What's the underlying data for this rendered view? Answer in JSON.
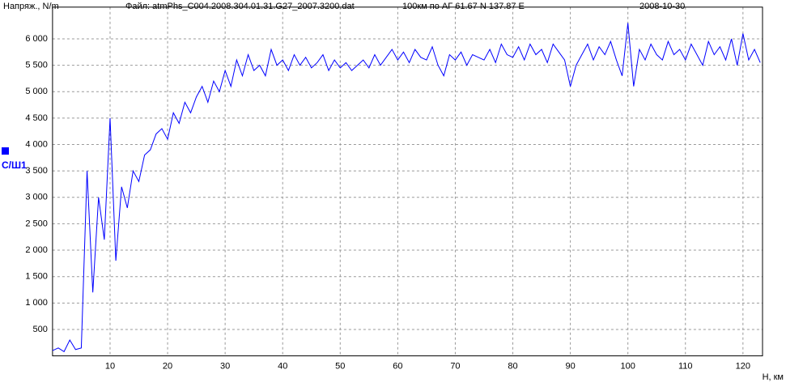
{
  "chart_data": {
    "type": "line",
    "title": "Файл: atmPhs_C004.2008.304.01.31.G27_2007.3200.dat",
    "y_label": "Напряж., N/m",
    "location": "100км по АГ 61.67 N  137.87 E",
    "date": "2008-10-30",
    "x_label": "Н, км",
    "grid": true,
    "xlim": [
      0,
      123.4
    ],
    "ylim": [
      0,
      6600
    ],
    "xticks": [
      10,
      20,
      30,
      40,
      50,
      60,
      70,
      80,
      90,
      100,
      110,
      120
    ],
    "yticks": [
      {
        "value": 500,
        "label": "500"
      },
      {
        "value": 1000,
        "label": "1 000"
      },
      {
        "value": 1500,
        "label": "1 500"
      },
      {
        "value": 2000,
        "label": "2 000"
      },
      {
        "value": 2500,
        "label": "2 500"
      },
      {
        "value": 3000,
        "label": "3 000"
      },
      {
        "value": 3500,
        "label": "3 500"
      },
      {
        "value": 4000,
        "label": "4 000"
      },
      {
        "value": 4500,
        "label": "4 500"
      },
      {
        "value": 5000,
        "label": "5 000"
      },
      {
        "value": 5500,
        "label": "5 500"
      },
      {
        "value": 6000,
        "label": "6 000"
      }
    ],
    "x": [
      0,
      1,
      2,
      3,
      4,
      5,
      6,
      7,
      8,
      9,
      10,
      11,
      12,
      13,
      14,
      15,
      16,
      17,
      18,
      19,
      20,
      21,
      22,
      23,
      24,
      25,
      26,
      27,
      28,
      29,
      30,
      31,
      32,
      33,
      34,
      35,
      36,
      37,
      38,
      39,
      40,
      41,
      42,
      43,
      44,
      45,
      46,
      47,
      48,
      49,
      50,
      51,
      52,
      53,
      54,
      55,
      56,
      57,
      58,
      59,
      60,
      61,
      62,
      63,
      64,
      65,
      66,
      67,
      68,
      69,
      70,
      71,
      72,
      73,
      74,
      75,
      76,
      77,
      78,
      79,
      80,
      81,
      82,
      83,
      84,
      85,
      86,
      87,
      88,
      89,
      90,
      91,
      92,
      93,
      94,
      95,
      96,
      97,
      98,
      99,
      100,
      101,
      102,
      103,
      104,
      105,
      106,
      107,
      108,
      109,
      110,
      111,
      112,
      113,
      114,
      115,
      116,
      117,
      118,
      119,
      120,
      121,
      122,
      123
    ],
    "series": [
      {
        "name": "С/Ш1",
        "color": "#0000ff",
        "values": [
          100,
          150,
          80,
          300,
          120,
          150,
          3500,
          1200,
          3000,
          2200,
          4500,
          1800,
          3200,
          2800,
          3500,
          3300,
          3800,
          3900,
          4200,
          4300,
          4100,
          4600,
          4400,
          4800,
          4600,
          4900,
          5100,
          4800,
          5200,
          5000,
          5400,
          5100,
          5600,
          5300,
          5700,
          5400,
          5500,
          5300,
          5800,
          5500,
          5600,
          5400,
          5700,
          5500,
          5650,
          5450,
          5550,
          5700,
          5400,
          5600,
          5450,
          5550,
          5400,
          5500,
          5600,
          5450,
          5700,
          5500,
          5650,
          5800,
          5600,
          5750,
          5550,
          5800,
          5650,
          5600,
          5850,
          5500,
          5300,
          5700,
          5600,
          5750,
          5500,
          5700,
          5650,
          5600,
          5800,
          5550,
          5900,
          5700,
          5650,
          5850,
          5600,
          5900,
          5700,
          5800,
          5550,
          5900,
          5750,
          5600,
          5100,
          5500,
          5700,
          5900,
          5600,
          5850,
          5700,
          5950,
          5600,
          5300,
          6300,
          5100,
          5800,
          5600,
          5900,
          5700,
          5600,
          5950,
          5700,
          5800,
          5600,
          5900,
          5700,
          5500,
          5950,
          5700,
          5850,
          5600,
          6000,
          5500,
          6100,
          5600,
          5800,
          5550
        ]
      }
    ]
  }
}
